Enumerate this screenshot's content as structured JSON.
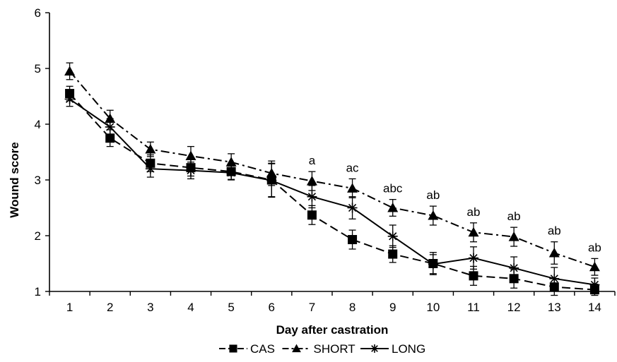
{
  "chart_data": {
    "type": "line",
    "xlabel": "Day after castration",
    "ylabel": "Wound score",
    "x": [
      1,
      2,
      3,
      4,
      5,
      6,
      7,
      8,
      9,
      10,
      11,
      12,
      13,
      14
    ],
    "xlim": [
      0.5,
      14.5
    ],
    "ylim": [
      1,
      6
    ],
    "yticks": [
      1,
      2,
      3,
      4,
      5,
      6
    ],
    "grid": false,
    "legend_position": "bottom",
    "series": [
      {
        "name": "CAS",
        "marker": "square",
        "dash": "dashed",
        "values": [
          4.55,
          3.75,
          3.3,
          3.22,
          3.15,
          3.0,
          2.37,
          1.93,
          1.67,
          1.5,
          1.28,
          1.23,
          1.08,
          1.03
        ],
        "error": [
          0.13,
          0.15,
          0.15,
          0.15,
          0.15,
          0.3,
          0.17,
          0.17,
          0.15,
          0.2,
          0.17,
          0.17,
          0.15,
          0.1
        ]
      },
      {
        "name": "SHORT",
        "marker": "triangle",
        "dash": "dash-dot",
        "values": [
          4.95,
          4.1,
          3.55,
          3.43,
          3.32,
          3.12,
          2.98,
          2.85,
          2.5,
          2.36,
          2.06,
          1.98,
          1.69,
          1.44
        ],
        "error": [
          0.15,
          0.15,
          0.13,
          0.17,
          0.15,
          0.22,
          0.17,
          0.17,
          0.15,
          0.17,
          0.17,
          0.17,
          0.2,
          0.15
        ]
      },
      {
        "name": "LONG",
        "marker": "asterisk",
        "dash": "solid",
        "values": [
          4.45,
          3.95,
          3.2,
          3.17,
          3.13,
          2.99,
          2.7,
          2.5,
          1.99,
          1.49,
          1.6,
          1.42,
          1.23,
          1.12
        ],
        "error": [
          0.13,
          0.15,
          0.15,
          0.15,
          0.12,
          0.3,
          0.2,
          0.2,
          0.2,
          0.17,
          0.2,
          0.2,
          0.2,
          0.12
        ]
      }
    ],
    "annotations": [
      {
        "x": 7,
        "text": "a"
      },
      {
        "x": 8,
        "text": "ac"
      },
      {
        "x": 9,
        "text": "abc"
      },
      {
        "x": 10,
        "text": "ab"
      },
      {
        "x": 11,
        "text": "ab"
      },
      {
        "x": 12,
        "text": "ab"
      },
      {
        "x": 13,
        "text": "ab"
      },
      {
        "x": 14,
        "text": "ab"
      }
    ],
    "colors": {
      "line": "#000000",
      "background": "#ffffff"
    }
  }
}
